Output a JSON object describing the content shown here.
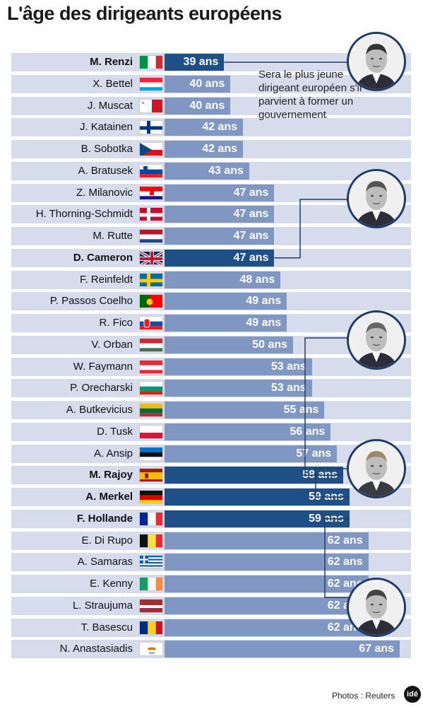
{
  "title": "L'âge des dirigeants européens",
  "note": "Sera le plus jeune dirigeant européen s'il parvient à former un gouvernement",
  "credit": "Photos : Reuters",
  "logo": "idé",
  "colors": {
    "bar": "#7f97c2",
    "bar_highlight": "#1e4f86",
    "row_bg": "#d7dcec",
    "connector": "#1e3b66"
  },
  "chart_data": {
    "type": "bar",
    "title": "L'âge des dirigeants européens",
    "orientation": "horizontal",
    "unit": "ans",
    "categories": [
      "M. Renzi",
      "X. Bettel",
      "J. Muscat",
      "J. Katainen",
      "B. Sobotka",
      "A. Bratusek",
      "Z. Milanovic",
      "H. Thorning-Schmidt",
      "M. Rutte",
      "D. Cameron",
      "F. Reinfeldt",
      "P. Passos Coelho",
      "R. Fico",
      "V. Orban",
      "W. Faymann",
      "P. Orecharski",
      "A. Butkevicius",
      "D. Tusk",
      "A. Ansip",
      "M. Rajoy",
      "A. Merkel",
      "F. Hollande",
      "E. Di Rupo",
      "A. Samaras",
      "E. Kenny",
      "L. Straujuma",
      "T. Basescu",
      "N. Anastasiadis"
    ],
    "values": [
      39,
      40,
      40,
      42,
      42,
      43,
      47,
      47,
      47,
      47,
      48,
      49,
      49,
      50,
      53,
      53,
      55,
      56,
      57,
      58,
      59,
      59,
      62,
      62,
      62,
      62,
      62,
      67
    ],
    "labels": [
      "39 ans",
      "40 ans",
      "40 ans",
      "42 ans",
      "42 ans",
      "43 ans",
      "47 ans",
      "47 ans",
      "47 ans",
      "47 ans",
      "48 ans",
      "49 ans",
      "49 ans",
      "50 ans",
      "53 ans",
      "53 ans",
      "55 ans",
      "56 ans",
      "57 ans",
      "58 ans",
      "59 ans",
      "59 ans",
      "62 ans",
      "62 ans",
      "62 ans",
      "62 ans",
      "62 ans",
      "67 ans"
    ],
    "highlighted": [
      0,
      9,
      19,
      20,
      21
    ],
    "flags": [
      "italy-flag",
      "luxembourg-flag",
      "malta-flag",
      "finland-flag",
      "czech-flag",
      "slovenia-flag",
      "croatia-flag",
      "denmark-flag",
      "netherlands-flag",
      "uk-flag",
      "sweden-flag",
      "portugal-flag",
      "slovakia-flag",
      "hungary-flag",
      "austria-flag",
      "bulgaria-flag",
      "lithuania-flag",
      "poland-flag",
      "estonia-flag",
      "spain-flag",
      "germany-flag",
      "france-flag",
      "belgium-flag",
      "greece-flag",
      "ireland-flag",
      "latvia-flag",
      "romania-flag",
      "cyprus-flag"
    ],
    "portraits": [
      "renzi-portrait",
      "cameron-portrait",
      "rajoy-portrait",
      "merkel-portrait",
      "hollande-portrait"
    ]
  }
}
